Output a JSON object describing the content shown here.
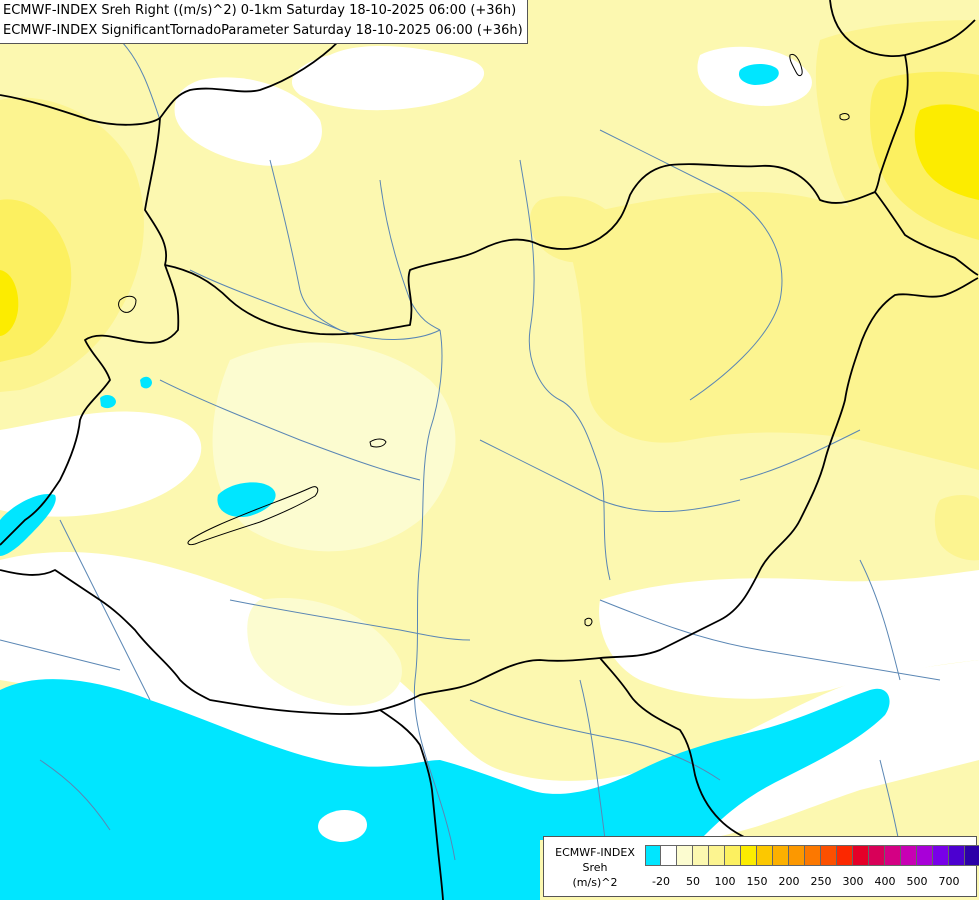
{
  "title": {
    "line1": "ECMWF-INDEX Sreh Right ((m/s)^2) 0-1km Saturday 18-10-2025 06:00 (+36h)",
    "line2": "ECMWF-INDEX SignificantTornadoParameter Saturday 18-10-2025 06:00 (+36h)"
  },
  "legend": {
    "line1": "ECMWF-INDEX",
    "line2": "Sreh",
    "line3": "(m/s)^2",
    "colors": [
      "#00e6ff",
      "#ffffff",
      "#fcfcd0",
      "#fcf8b0",
      "#fcf490",
      "#fcf060",
      "#fcec00",
      "#fcc800",
      "#fcb000",
      "#fc9800",
      "#fc7800",
      "#fc5000",
      "#fc2800",
      "#e40028",
      "#d80058",
      "#d40084",
      "#c800b4",
      "#a800d8",
      "#7800e8",
      "#4c00d0",
      "#2c00a8",
      "#000080"
    ],
    "tick_labels": [
      "-20",
      "50",
      "100",
      "150",
      "200",
      "250",
      "300",
      "400",
      "500",
      "700"
    ]
  },
  "field_colors": {
    "white": "#ffffff",
    "pale_yellow": "#fcfcd0",
    "light_yellow": "#fcf8b0",
    "yellow": "#fcf490",
    "yellow_mid": "#fcf060",
    "yellow_strong": "#fcec00",
    "cyan": "#00e6ff",
    "border": "#000000",
    "river": "#5a86b4"
  }
}
